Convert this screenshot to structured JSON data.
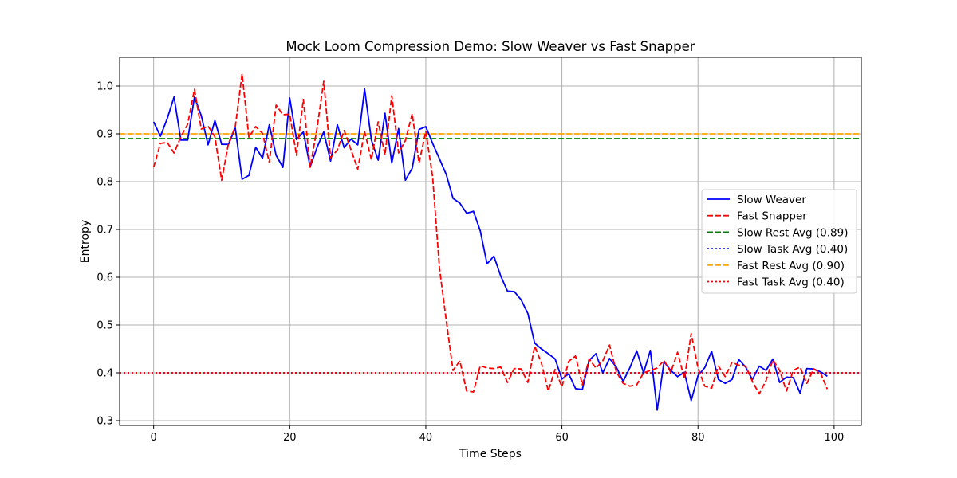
{
  "chart_data": {
    "type": "line",
    "title": "Mock Loom Compression Demo: Slow Weaver vs Fast Snapper",
    "xlabel": "Time Steps",
    "ylabel": "Entropy",
    "xlim": [
      -5,
      104
    ],
    "ylim": [
      0.29,
      1.06
    ],
    "xticks": [
      0,
      20,
      40,
      60,
      80,
      100
    ],
    "yticks": [
      0.3,
      0.4,
      0.5,
      0.6,
      0.7,
      0.8,
      0.9,
      1.0
    ],
    "xtick_labels": [
      "0",
      "20",
      "40",
      "60",
      "80",
      "100"
    ],
    "ytick_labels": [
      "0.3",
      "0.4",
      "0.5",
      "0.6",
      "0.7",
      "0.8",
      "0.9",
      "1.0"
    ],
    "grid": true,
    "legend_position": "center-right",
    "series": [
      {
        "name": "Slow Weaver",
        "color": "#0000ff",
        "style": "solid",
        "x": [
          0,
          1,
          2,
          3,
          4,
          5,
          6,
          7,
          8,
          9,
          10,
          11,
          12,
          13,
          14,
          15,
          16,
          17,
          18,
          19,
          20,
          21,
          22,
          23,
          24,
          25,
          26,
          27,
          28,
          29,
          30,
          31,
          32,
          33,
          34,
          35,
          36,
          37,
          38,
          39,
          40,
          41,
          42,
          43,
          44,
          45,
          46,
          47,
          48,
          49,
          50,
          51,
          52,
          53,
          54,
          55,
          56,
          57,
          58,
          59,
          60,
          61,
          62,
          63,
          64,
          65,
          66,
          67,
          68,
          69,
          70,
          71,
          72,
          73,
          74,
          75,
          76,
          77,
          78,
          79,
          80,
          81,
          82,
          83,
          84,
          85,
          86,
          87,
          88,
          89,
          90,
          91,
          92,
          93,
          94,
          95,
          96,
          97,
          98,
          99
        ],
        "values": [
          0.925,
          0.895,
          0.932,
          0.977,
          0.887,
          0.887,
          0.977,
          0.938,
          0.877,
          0.928,
          0.878,
          0.878,
          0.912,
          0.805,
          0.813,
          0.872,
          0.849,
          0.919,
          0.855,
          0.83,
          0.975,
          0.888,
          0.904,
          0.831,
          0.871,
          0.904,
          0.843,
          0.919,
          0.871,
          0.889,
          0.877,
          0.994,
          0.887,
          0.845,
          0.943,
          0.839,
          0.911,
          0.803,
          0.828,
          0.909,
          0.915,
          0.88,
          0.848,
          0.815,
          0.765,
          0.755,
          0.734,
          0.738,
          0.697,
          0.628,
          0.644,
          0.603,
          0.571,
          0.57,
          0.553,
          0.524,
          0.462,
          0.45,
          0.44,
          0.429,
          0.387,
          0.398,
          0.367,
          0.365,
          0.426,
          0.44,
          0.4,
          0.43,
          0.412,
          0.382,
          0.411,
          0.446,
          0.4,
          0.447,
          0.322,
          0.423,
          0.405,
          0.392,
          0.401,
          0.342,
          0.394,
          0.411,
          0.445,
          0.386,
          0.378,
          0.386,
          0.428,
          0.412,
          0.386,
          0.414,
          0.405,
          0.429,
          0.38,
          0.391,
          0.39,
          0.358,
          0.409,
          0.408,
          0.402,
          0.393
        ]
      },
      {
        "name": "Fast Snapper",
        "color": "#ff0000",
        "style": "dashed",
        "x": [
          0,
          1,
          2,
          3,
          4,
          5,
          6,
          7,
          8,
          9,
          10,
          11,
          12,
          13,
          14,
          15,
          16,
          17,
          18,
          19,
          20,
          21,
          22,
          23,
          24,
          25,
          26,
          27,
          28,
          29,
          30,
          31,
          32,
          33,
          34,
          35,
          36,
          37,
          38,
          39,
          40,
          41,
          42,
          43,
          44,
          45,
          46,
          47,
          48,
          49,
          50,
          51,
          52,
          53,
          54,
          55,
          56,
          57,
          58,
          59,
          60,
          61,
          62,
          63,
          64,
          65,
          66,
          67,
          68,
          69,
          70,
          71,
          72,
          73,
          74,
          75,
          76,
          77,
          78,
          79,
          80,
          81,
          82,
          83,
          84,
          85,
          86,
          87,
          88,
          89,
          90,
          91,
          92,
          93,
          94,
          95,
          96,
          97,
          98,
          99
        ],
        "values": [
          0.83,
          0.88,
          0.882,
          0.86,
          0.894,
          0.92,
          0.993,
          0.91,
          0.916,
          0.894,
          0.803,
          0.88,
          0.915,
          1.025,
          0.893,
          0.915,
          0.901,
          0.84,
          0.96,
          0.94,
          0.941,
          0.855,
          0.972,
          0.83,
          0.91,
          1.01,
          0.85,
          0.866,
          0.907,
          0.867,
          0.826,
          0.905,
          0.846,
          0.925,
          0.856,
          0.98,
          0.86,
          0.886,
          0.942,
          0.839,
          0.905,
          0.81,
          0.62,
          0.51,
          0.405,
          0.425,
          0.362,
          0.36,
          0.415,
          0.41,
          0.409,
          0.412,
          0.38,
          0.409,
          0.408,
          0.38,
          0.456,
          0.42,
          0.362,
          0.407,
          0.371,
          0.424,
          0.435,
          0.375,
          0.429,
          0.41,
          0.425,
          0.458,
          0.402,
          0.378,
          0.372,
          0.375,
          0.4,
          0.405,
          0.41,
          0.426,
          0.401,
          0.443,
          0.388,
          0.482,
          0.41,
          0.372,
          0.368,
          0.414,
          0.392,
          0.422,
          0.416,
          0.414,
          0.382,
          0.356,
          0.384,
          0.427,
          0.405,
          0.362,
          0.405,
          0.412,
          0.378,
          0.408,
          0.4,
          0.366
        ]
      }
    ],
    "reference_lines": [
      {
        "name": "Slow Rest Avg (0.89)",
        "y": 0.89,
        "color": "#008000",
        "style": "dashed"
      },
      {
        "name": "Slow Task Avg (0.40)",
        "y": 0.4,
        "color": "#0000ff",
        "style": "dotted"
      },
      {
        "name": "Fast Rest Avg (0.90)",
        "y": 0.9,
        "color": "#ffa500",
        "style": "dashed"
      },
      {
        "name": "Fast Task Avg (0.40)",
        "y": 0.4,
        "color": "#ff0000",
        "style": "dotted"
      }
    ]
  }
}
